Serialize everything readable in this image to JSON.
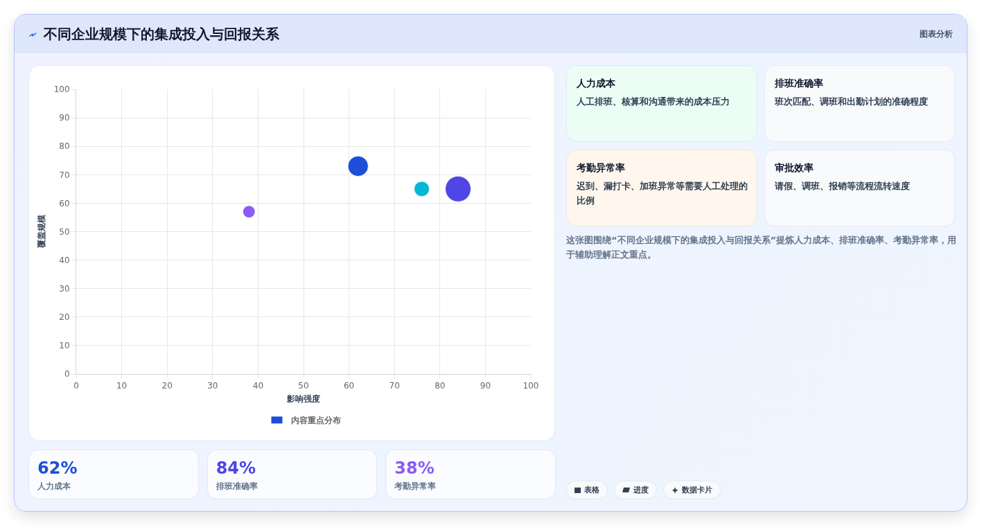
{
  "chart_data": [
    {
      "type": "bubble",
      "title": "不同企业规模下的集成投入与回报关系",
      "xlabel": "影响强度",
      "ylabel": "覆盖规模",
      "x": [
        62,
        38,
        76,
        84
      ],
      "series": [
        {
          "name": "内容重点分布",
          "color": "#1d4ed8",
          "colors": [
            "#1d4ed8",
            "#8b5cf6",
            "#06b6d4",
            "#4f46e5"
          ],
          "values": [
            73,
            57,
            65,
            65
          ],
          "sizes": [
            0.63,
            0.23,
            0.35,
            1
          ]
        }
      ],
      "xlim": [
        0,
        100
      ],
      "xticks": [
        0,
        10,
        20,
        30,
        40,
        50,
        60,
        70,
        80,
        90,
        100
      ],
      "ylim": [
        0,
        100
      ],
      "yticks": [
        0,
        10,
        20,
        30,
        40,
        50,
        60,
        70,
        80,
        90,
        100
      ],
      "grid": true,
      "legend": "bottom",
      "marker": "circle",
      "annotations": [
        "这张图围绕“不同企业规模下的集成投入与回报关系”提炼人力成本、排班准确率、考勤异常率，用于辅助理解正文重点。"
      ]
    },
    {
      "type": "other",
      "categories": [
        "人力成本",
        "排班准确率",
        "考勤异常率"
      ],
      "values": [
        62,
        84,
        38
      ],
      "value_labels": [
        "62%",
        "84%",
        "38%"
      ]
    },
    {
      "type": "other",
      "title": "图表分析",
      "categories": [
        "人力成本",
        "排班准确率",
        "考勤异常率",
        "审批效率"
      ],
      "annotations": [
        "人工排班、核算和沟通带来的成本压力",
        "班次匹配、调班和出勤计划的准确程度",
        "迟到、漏打卡、加班异常等需要人工处理的比例",
        "请假、调班、报销等流程流转速度"
      ],
      "colors": [
        "#ecfdf5",
        "#f8fafc",
        "#fff7ed",
        "#f8fafc"
      ]
    },
    {
      "type": "other",
      "categories": [
        "表格",
        "进度",
        "数据卡片"
      ]
    }
  ]
}
